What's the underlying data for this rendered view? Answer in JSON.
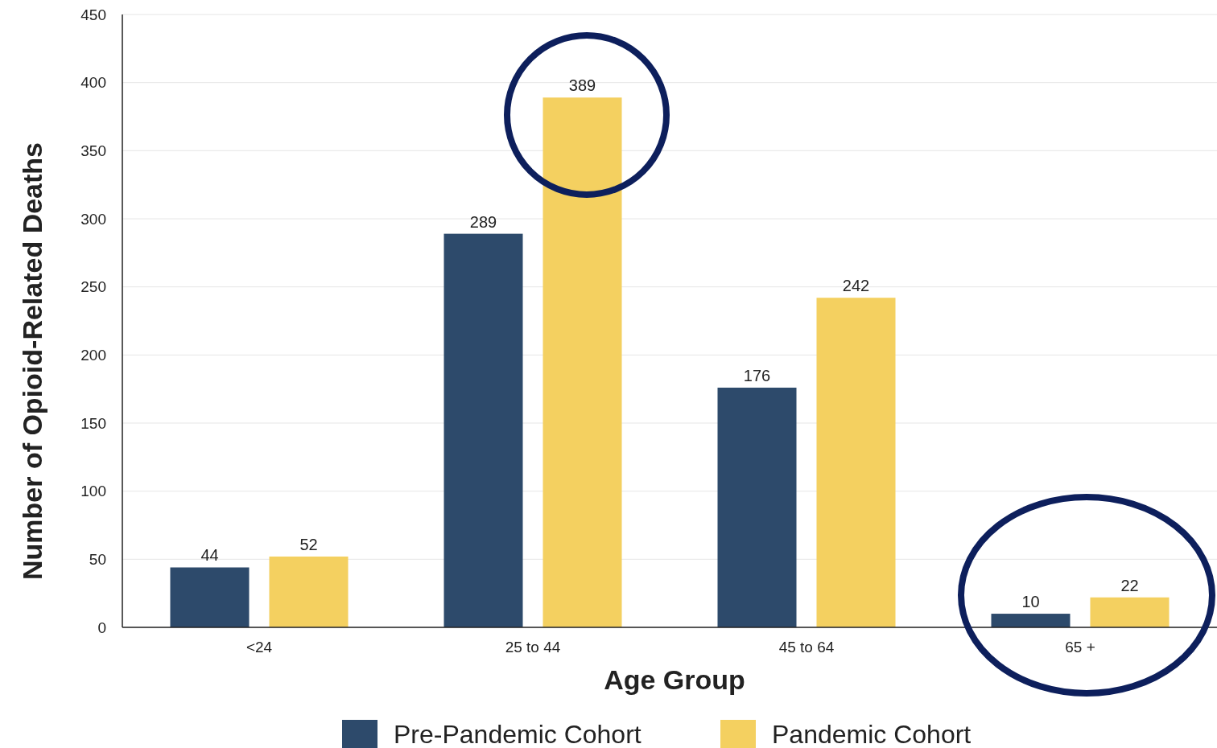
{
  "chart_data": {
    "type": "bar",
    "xlabel": "Age Group",
    "ylabel": "Number of Opioid-Related Deaths",
    "categories": [
      "<24",
      "25 to 44",
      "45 to 64",
      "65 +"
    ],
    "series": [
      {
        "name": "Pre-Pandemic Cohort",
        "color": "#2d4a6b",
        "values": [
          44,
          289,
          176,
          10
        ]
      },
      {
        "name": "Pandemic Cohort",
        "color": "#f4d060",
        "values": [
          52,
          389,
          242,
          22
        ]
      }
    ],
    "ylim": [
      0,
      450
    ],
    "yticks": [
      0,
      50,
      100,
      150,
      200,
      250,
      300,
      350,
      400,
      450
    ],
    "grid": "y",
    "legend": "bottom",
    "data_labels": true
  }
}
